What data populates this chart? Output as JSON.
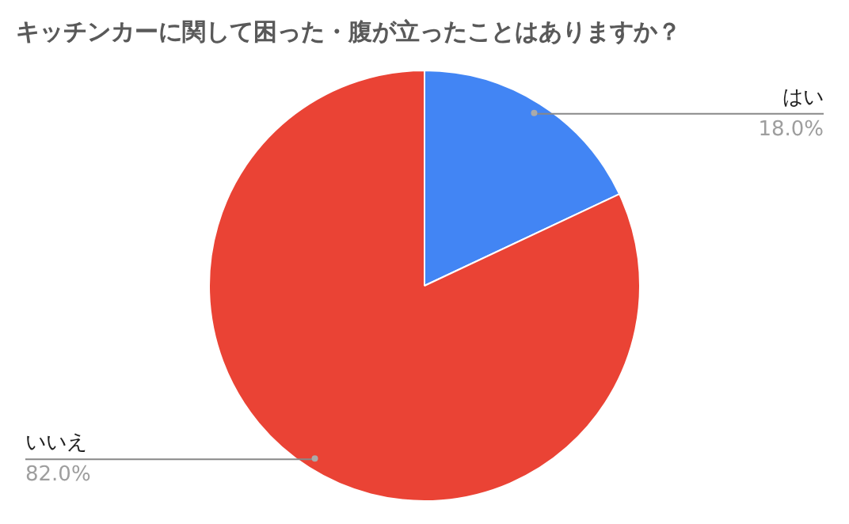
{
  "chart_data": {
    "type": "pie",
    "title": "キッチンカーに関して困った・腹が立ったことはありますか？",
    "categories": [
      "はい",
      "いいえ"
    ],
    "values": [
      18.0,
      82.0
    ],
    "colors": [
      "#4285f4",
      "#ea4335"
    ],
    "value_labels": [
      "18.0%",
      "82.0%"
    ],
    "legend": false
  }
}
